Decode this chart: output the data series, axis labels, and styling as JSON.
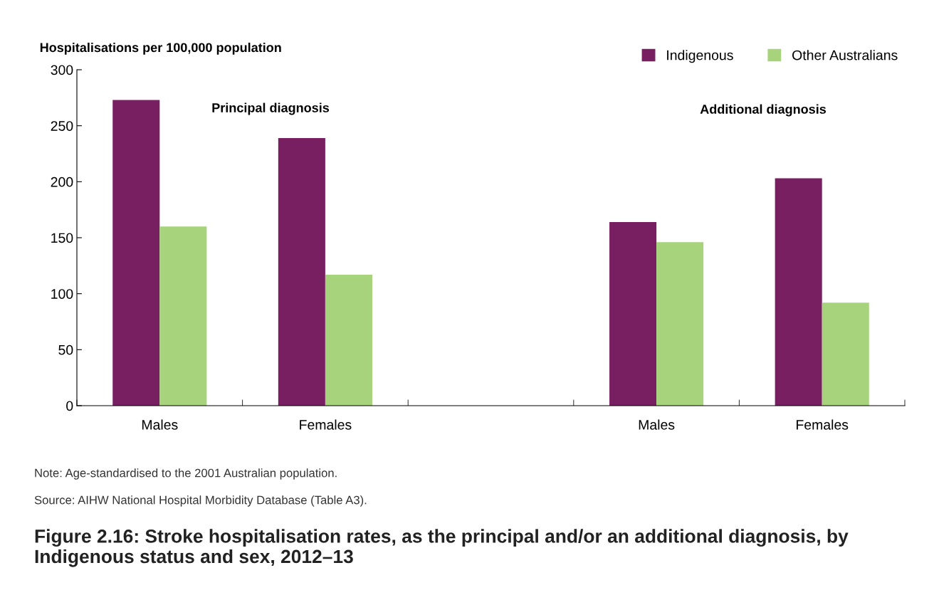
{
  "chart_data": {
    "type": "bar",
    "title": "Figure 2.16: Stroke hospitalisation rates, as the principal and/or an additional diagnosis, by Indigenous status and sex, 2012–13",
    "ylabel": "Hospitalisations per 100,000 population",
    "categories": [
      "Males",
      "Females",
      null,
      "Males",
      "Females"
    ],
    "series": [
      {
        "name": "Indigenous",
        "color": "#781f61",
        "values": [
          273,
          239,
          null,
          164,
          203
        ]
      },
      {
        "name": "Other Australians",
        "color": "#a8d37d",
        "values": [
          160,
          117,
          null,
          146,
          92
        ]
      }
    ],
    "ylim": [
      0,
      300
    ],
    "yticks": [
      0,
      50,
      100,
      150,
      200,
      250,
      300
    ],
    "grid": false,
    "legend": "top right",
    "annotations": [
      "Principal diagnosis",
      "Additional diagnosis",
      "Note: Age-standardised to the 2001 Australian population.",
      "Source: AIHW National Hospital Morbidity Database (Table A3)."
    ]
  }
}
